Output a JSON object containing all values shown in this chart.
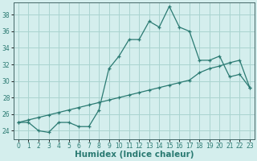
{
  "title": "",
  "xlabel": "Humidex (Indice chaleur)",
  "ylabel": "",
  "xlim": [
    -0.5,
    23.5
  ],
  "ylim": [
    23.0,
    39.5
  ],
  "yticks": [
    24,
    26,
    28,
    30,
    32,
    34,
    36,
    38
  ],
  "xticks": [
    0,
    1,
    2,
    3,
    4,
    5,
    6,
    7,
    8,
    9,
    10,
    11,
    12,
    13,
    14,
    15,
    16,
    17,
    18,
    19,
    20,
    21,
    22,
    23
  ],
  "bg_color": "#d4eeed",
  "grid_color": "#aad4d0",
  "line_color": "#2a7a72",
  "line1_x": [
    0,
    1,
    2,
    3,
    4,
    5,
    6,
    7,
    8,
    9,
    10,
    11,
    12,
    13,
    14,
    15,
    16,
    17,
    18,
    19,
    20,
    21,
    22,
    23
  ],
  "line1_y": [
    25.0,
    25.0,
    24.0,
    23.8,
    25.0,
    25.0,
    24.5,
    24.5,
    26.5,
    31.5,
    33.0,
    35.0,
    35.0,
    37.2,
    36.5,
    39.0,
    36.5,
    36.0,
    32.5,
    32.5,
    33.0,
    30.5,
    30.8,
    29.2
  ],
  "line2_x": [
    0,
    1,
    2,
    3,
    4,
    5,
    6,
    7,
    8,
    9,
    10,
    11,
    12,
    13,
    14,
    15,
    16,
    17,
    18,
    19,
    20,
    21,
    22,
    23
  ],
  "line2_y": [
    25.0,
    25.3,
    25.6,
    25.9,
    26.2,
    26.5,
    26.8,
    27.1,
    27.4,
    27.7,
    28.0,
    28.3,
    28.6,
    28.9,
    29.2,
    29.5,
    29.8,
    30.1,
    31.0,
    31.5,
    31.8,
    32.2,
    32.5,
    29.2
  ],
  "tick_fontsize": 5.5,
  "xlabel_fontsize": 7.5
}
